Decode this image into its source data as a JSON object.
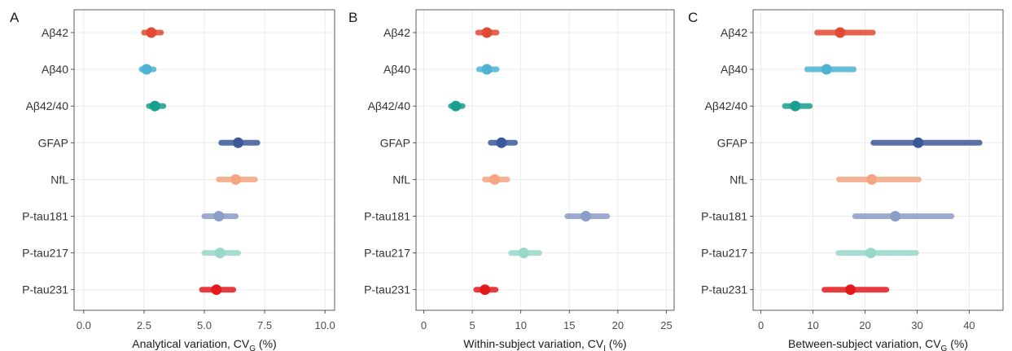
{
  "chart_data": [
    {
      "type": "dot-range",
      "panel_label": "A",
      "xlabel_main": "Analytical variation, CV",
      "xlabel_sub": "G",
      "xlabel_tail": " (%)",
      "xlim": [
        -0.4,
        10.4
      ],
      "xticks": [
        0,
        2.5,
        5,
        7.5,
        10
      ],
      "xtick_labels": [
        "0.0",
        "2.5",
        "5.0",
        "7.5",
        "10.0"
      ],
      "grid": true,
      "categories": [
        "Aβ42",
        "Aβ40",
        "Aβ42/40",
        "GFAP",
        "NfL",
        "P-tau181",
        "P-tau217",
        "P-tau231"
      ],
      "points": [
        {
          "category": "Aβ42",
          "estimate": 2.8,
          "low": 2.5,
          "high": 3.2,
          "color": "#e34a33"
        },
        {
          "category": "Aβ40",
          "estimate": 2.6,
          "low": 2.4,
          "high": 2.9,
          "color": "#4eb3d3"
        },
        {
          "category": "Aβ42/40",
          "estimate": 2.95,
          "low": 2.7,
          "high": 3.3,
          "color": "#1a9e8f"
        },
        {
          "category": "GFAP",
          "estimate": 6.4,
          "low": 5.7,
          "high": 7.2,
          "color": "#3b5998"
        },
        {
          "category": "NfL",
          "estimate": 6.3,
          "low": 5.6,
          "high": 7.1,
          "color": "#f4a582"
        },
        {
          "category": "P-tau181",
          "estimate": 5.6,
          "low": 5.0,
          "high": 6.3,
          "color": "#8c9dc7"
        },
        {
          "category": "P-tau217",
          "estimate": 5.65,
          "low": 5.0,
          "high": 6.4,
          "color": "#99d8c9"
        },
        {
          "category": "P-tau231",
          "estimate": 5.5,
          "low": 4.9,
          "high": 6.2,
          "color": "#e31a1c"
        }
      ]
    },
    {
      "type": "dot-range",
      "panel_label": "B",
      "xlabel_main": "Within-subject variation, CV",
      "xlabel_sub": "I",
      "xlabel_tail": " (%)",
      "xlim": [
        -0.8,
        25.8
      ],
      "xticks": [
        0,
        5,
        10,
        15,
        20,
        25
      ],
      "xtick_labels": [
        "0",
        "5",
        "10",
        "15",
        "20",
        "25"
      ],
      "grid": true,
      "categories": [
        "Aβ42",
        "Aβ40",
        "Aβ42/40",
        "GFAP",
        "NfL",
        "P-tau181",
        "P-tau217",
        "P-tau231"
      ],
      "points": [
        {
          "category": "Aβ42",
          "estimate": 6.5,
          "low": 5.6,
          "high": 7.5,
          "color": "#e34a33"
        },
        {
          "category": "Aβ40",
          "estimate": 6.5,
          "low": 5.7,
          "high": 7.5,
          "color": "#4eb3d3"
        },
        {
          "category": "Aβ42/40",
          "estimate": 3.3,
          "low": 2.8,
          "high": 4.0,
          "color": "#1a9e8f"
        },
        {
          "category": "GFAP",
          "estimate": 8.0,
          "low": 6.9,
          "high": 9.4,
          "color": "#3b5998"
        },
        {
          "category": "NfL",
          "estimate": 7.3,
          "low": 6.3,
          "high": 8.6,
          "color": "#f4a582"
        },
        {
          "category": "P-tau181",
          "estimate": 16.7,
          "low": 14.8,
          "high": 18.9,
          "color": "#8c9dc7"
        },
        {
          "category": "P-tau217",
          "estimate": 10.3,
          "low": 9.0,
          "high": 11.9,
          "color": "#99d8c9"
        },
        {
          "category": "P-tau231",
          "estimate": 6.3,
          "low": 5.4,
          "high": 7.4,
          "color": "#e31a1c"
        }
      ]
    },
    {
      "type": "dot-range",
      "panel_label": "C",
      "xlabel_main": "Between-subject variation, CV",
      "xlabel_sub": "G",
      "xlabel_tail": " (%)",
      "xlim": [
        -1.5,
        46.5
      ],
      "xticks": [
        0,
        10,
        20,
        30,
        40
      ],
      "xtick_labels": [
        "0",
        "10",
        "20",
        "30",
        "40"
      ],
      "grid": true,
      "categories": [
        "Aβ42",
        "Aβ40",
        "Aβ42/40",
        "GFAP",
        "NfL",
        "P-tau181",
        "P-tau217",
        "P-tau231"
      ],
      "points": [
        {
          "category": "Aβ42",
          "estimate": 15.2,
          "low": 10.8,
          "high": 21.5,
          "color": "#e34a33"
        },
        {
          "category": "Aβ40",
          "estimate": 12.6,
          "low": 8.9,
          "high": 17.8,
          "color": "#4eb3d3"
        },
        {
          "category": "Aβ42/40",
          "estimate": 6.6,
          "low": 4.6,
          "high": 9.4,
          "color": "#1a9e8f"
        },
        {
          "category": "GFAP",
          "estimate": 30.2,
          "low": 21.6,
          "high": 42.0,
          "color": "#3b5998"
        },
        {
          "category": "NfL",
          "estimate": 21.3,
          "low": 15.0,
          "high": 30.3,
          "color": "#f4a582"
        },
        {
          "category": "P-tau181",
          "estimate": 25.8,
          "low": 18.1,
          "high": 36.6,
          "color": "#8c9dc7"
        },
        {
          "category": "P-tau217",
          "estimate": 21.1,
          "low": 14.9,
          "high": 29.8,
          "color": "#99d8c9"
        },
        {
          "category": "P-tau231",
          "estimate": 17.2,
          "low": 12.2,
          "high": 24.1,
          "color": "#e31a1c"
        }
      ]
    }
  ]
}
